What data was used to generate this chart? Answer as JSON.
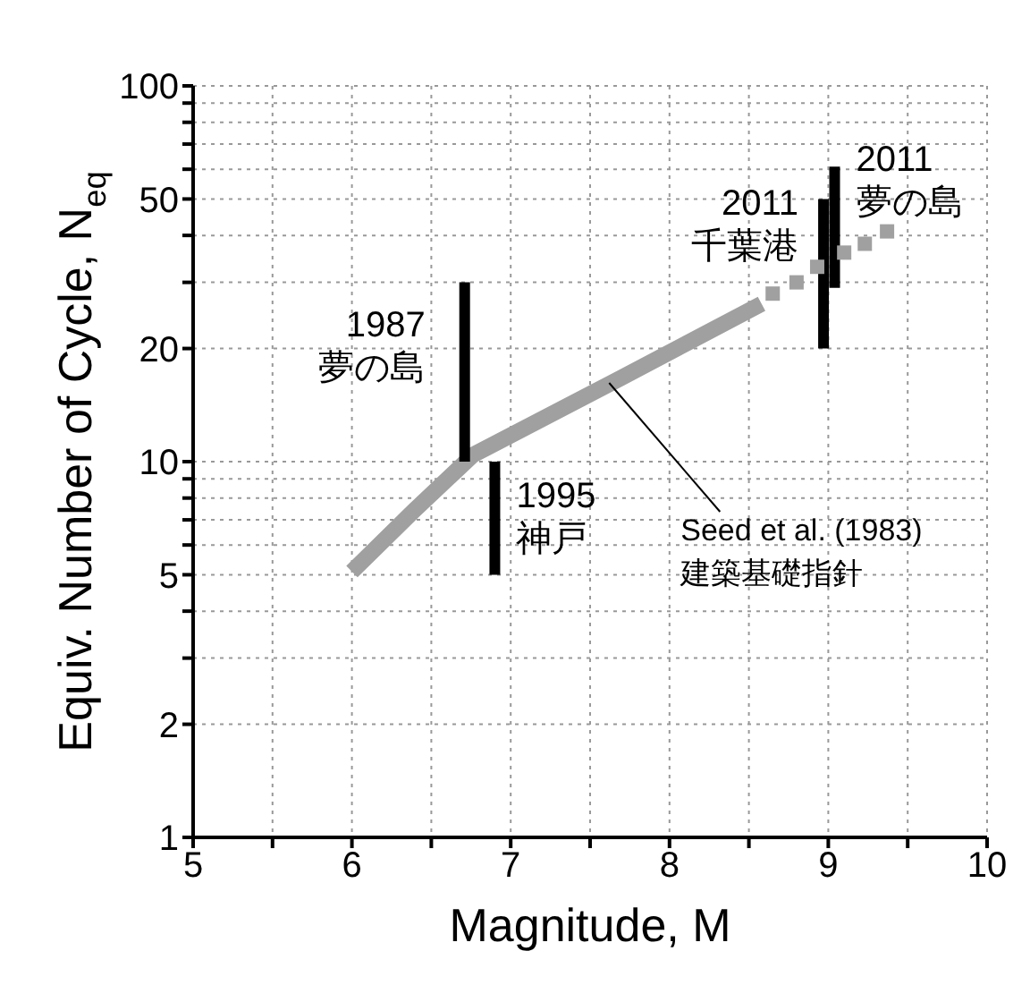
{
  "chart_data": {
    "type": "line",
    "xlabel": "Magnitude, M",
    "ylabel": "Equiv. Number of Cycle, N$_{eq}$",
    "xlim": [
      5,
      10
    ],
    "xticks": [
      5,
      {
        "value": 5.5,
        "label": null
      },
      6,
      {
        "value": 6.5,
        "label": null
      },
      7,
      {
        "value": 7.5,
        "label": null
      },
      8,
      {
        "value": 8.5,
        "label": null
      },
      9,
      {
        "value": 9.5,
        "label": null
      },
      10
    ],
    "ylim": [
      1,
      100
    ],
    "yticks": [
      1,
      2,
      {
        "value": 3,
        "label": null
      },
      {
        "value": 4,
        "label": null
      },
      5,
      {
        "value": 6,
        "label": null
      },
      {
        "value": 7,
        "label": null
      },
      {
        "value": 8,
        "label": null
      },
      {
        "value": 9,
        "label": null
      },
      10,
      20,
      {
        "value": 30,
        "label": null
      },
      {
        "value": 40,
        "label": null
      },
      50,
      {
        "value": 60,
        "label": null
      },
      {
        "value": 70,
        "label": null
      },
      {
        "value": 80,
        "label": null
      },
      {
        "value": 90,
        "label": null
      },
      100
    ],
    "log": "y",
    "grid": true,
    "series": [
      {
        "color": "#a0a0a0",
        "x": [
          6.0,
          6.39,
          6.76,
          7.67,
          8.58
        ],
        "values": [
          5.1,
          7.4,
          10.4,
          16.5,
          26.3
        ]
      },
      {
        "type": "scatter",
        "marker": "square",
        "color": "#a0a0a0",
        "x": [
          8.65,
          8.8,
          8.93,
          9.1,
          9.23,
          9.37
        ],
        "values": [
          28,
          30,
          33,
          36,
          38,
          41
        ]
      },
      {
        "color": "#000000",
        "x": [
          6.71,
          6.71
        ],
        "values": [
          10,
          30
        ]
      },
      {
        "color": "#000000",
        "x": [
          6.9,
          6.9
        ],
        "values": [
          5,
          10
        ]
      },
      {
        "color": "#000000",
        "x": [
          8.97,
          8.97
        ],
        "values": [
          20,
          50
        ]
      },
      {
        "color": "#000000",
        "x": [
          9.04,
          9.04
        ],
        "values": [
          29,
          61
        ]
      }
    ],
    "annotations": [
      {
        "text": "1987\n夢の島",
        "x": 6.71,
        "y": 20
      },
      {
        "text": "1995\n神戸",
        "x": 6.9,
        "y": 7
      },
      {
        "text": "2011\n千葉港",
        "x": 8.97,
        "y": 42
      },
      {
        "text": "2011\n夢の島",
        "x": 9.04,
        "y": 55
      },
      {
        "text": "Seed et al. (1983)\n建築基礎指針",
        "x": 7.62,
        "y": 16.2
      }
    ]
  }
}
